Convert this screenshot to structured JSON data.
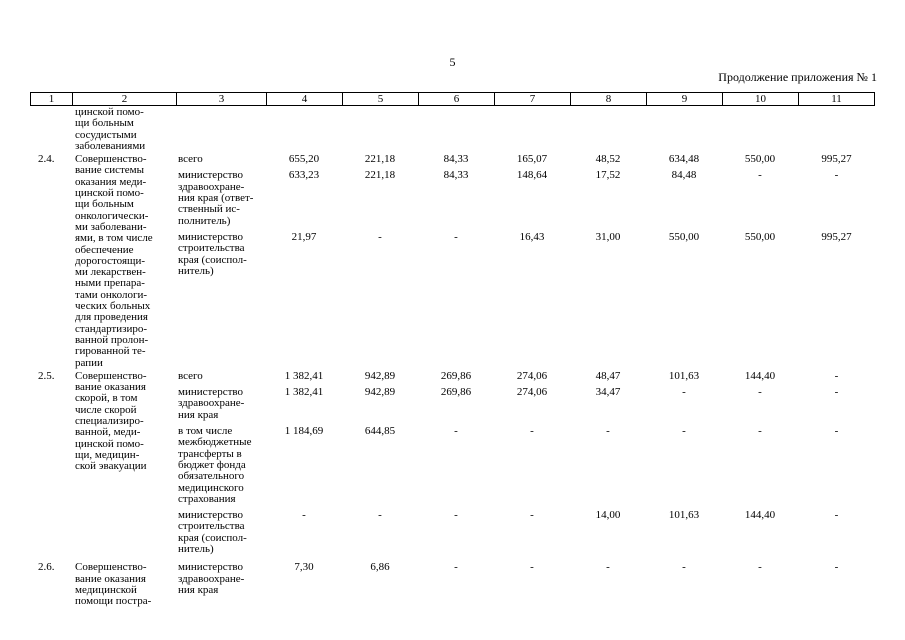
{
  "page": {
    "number": "5",
    "header_right": "Продолжение приложения № 1"
  },
  "table": {
    "column_numbers": [
      "1",
      "2",
      "3",
      "4",
      "5",
      "6",
      "7",
      "8",
      "9",
      "10",
      "11"
    ],
    "rows": [
      {
        "num": "",
        "title": "цинской помо-\nщи больным\nсосудистыми\nзаболеваниями",
        "entries": []
      },
      {
        "num": "2.4.",
        "title": "Совершенство-\nвание системы\nоказания меди-\nцинской помо-\nщи больным\nонкологически-\nми заболевани-\nями, в том числе\nобеспечение\nдорогостоящи-\nми лекарствен-\nными препара-\nтами онкологи-\nческих больных\nдля проведения\nстандартизиро-\nванной пролон-\nгированной те-\nрапии",
        "entries": [
          {
            "executor": "всего",
            "values": [
              "655,20",
              "221,18",
              "84,33",
              "165,07",
              "48,52",
              "634,48",
              "550,00",
              "995,27"
            ]
          },
          {
            "executor": "министерство\nздравоохране-\nния края (ответ-\nственный ис-\nполнитель)",
            "values": [
              "633,23",
              "221,18",
              "84,33",
              "148,64",
              "17,52",
              "84,48",
              "-",
              "-"
            ]
          },
          {
            "executor": "министерство\nстроительства\nкрая (соиспол-\nнитель)",
            "values": [
              "21,97",
              "-",
              "-",
              "16,43",
              "31,00",
              "550,00",
              "550,00",
              "995,27"
            ]
          }
        ]
      },
      {
        "num": "2.5.",
        "title": "Совершенство-\nвание оказания\nскорой, в том\nчисле скорой\nспециализиро-\nванной, меди-\nцинской помо-\nщи, медицин-\nской эвакуации",
        "entries": [
          {
            "executor": "всего",
            "values": [
              "1 382,41",
              "942,89",
              "269,86",
              "274,06",
              "48,47",
              "101,63",
              "144,40",
              "-"
            ]
          },
          {
            "executor": "министерство\nздравоохране-\nния края",
            "values": [
              "1 382,41",
              "942,89",
              "269,86",
              "274,06",
              "34,47",
              "-",
              "-",
              "-"
            ]
          },
          {
            "executor": "в том числе\nмежбюджетные\nтрансферты в\nбюджет фонда\nобязательного\nмедицинского\nстрахования",
            "values": [
              "1 184,69",
              "644,85",
              "-",
              "-",
              "-",
              "-",
              "-",
              "-"
            ]
          },
          {
            "executor": "министерство\nстроительства\nкрая (соиспол-\nнитель)",
            "values": [
              "-",
              "-",
              "-",
              "-",
              "14,00",
              "101,63",
              "144,40",
              "-"
            ]
          }
        ]
      },
      {
        "num": "2.6.",
        "title": "Совершенство-\nвание оказания\nмедицинской\nпомощи постра-",
        "entries": [
          {
            "executor": "министерство\nздравоохране-\nния края",
            "values": [
              "7,30",
              "6,86",
              "-",
              "-",
              "-",
              "-",
              "-",
              "-"
            ]
          }
        ]
      }
    ]
  }
}
